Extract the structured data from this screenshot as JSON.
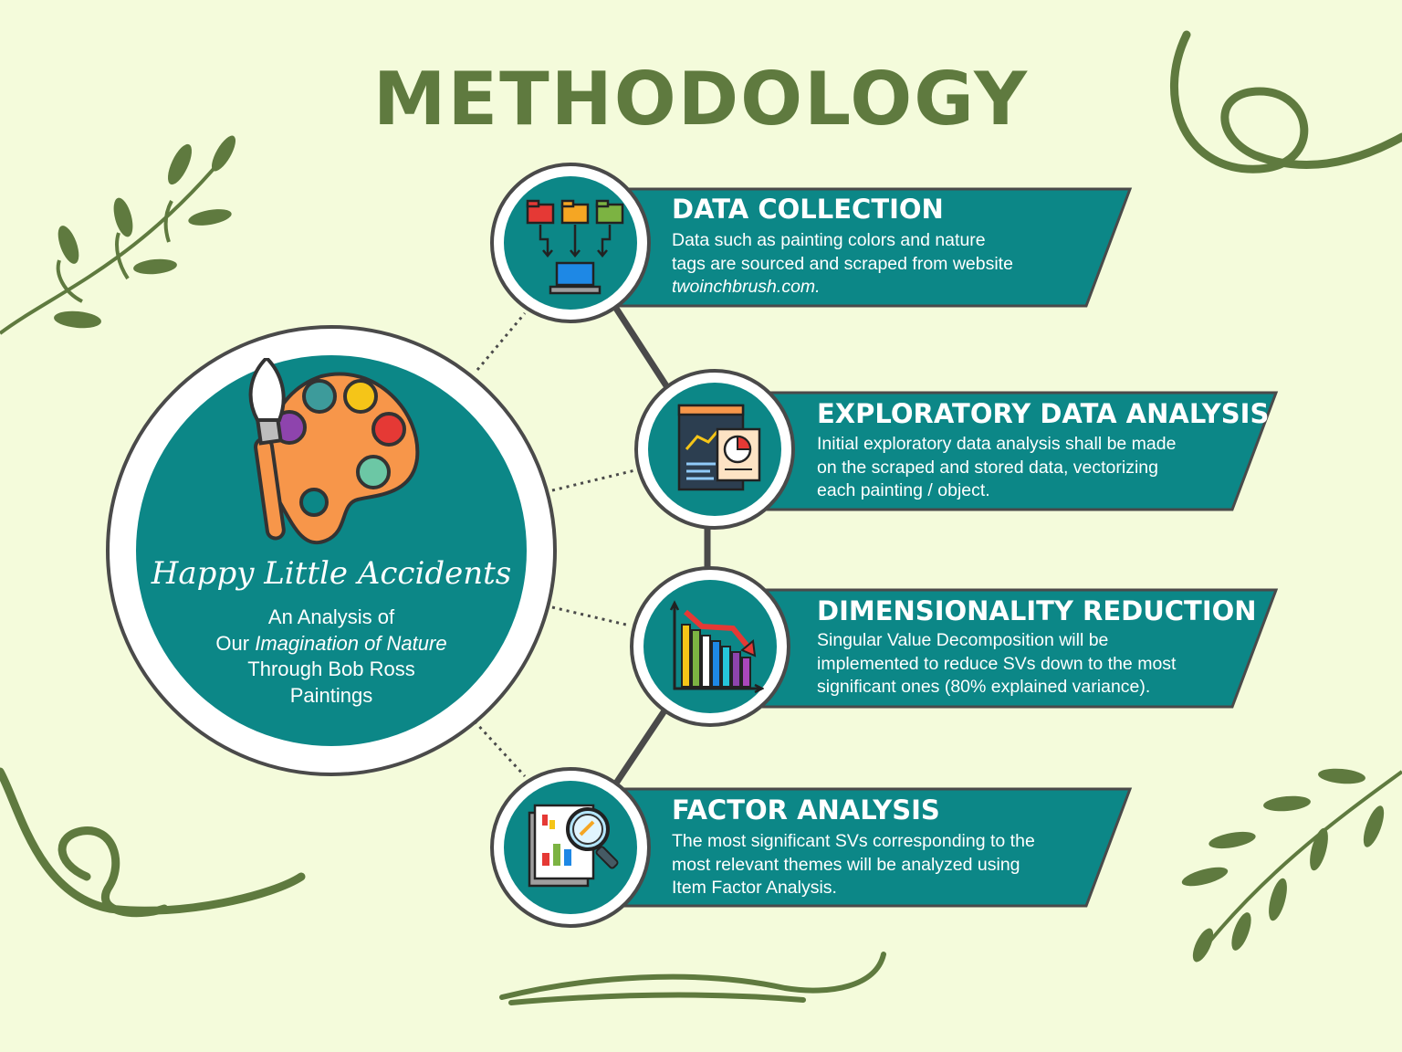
{
  "title": "METHODOLOGY",
  "hub": {
    "script_title": "Happy Little Accidents",
    "subtitle_line1": "An Analysis of",
    "subtitle_line2_pre": "Our ",
    "subtitle_line2_em": "Imagination of Nature",
    "subtitle_line3": "Through Bob Ross",
    "subtitle_line4": "Paintings",
    "icon": "paint-palette-with-brush-icon"
  },
  "steps": [
    {
      "title": "DATA COLLECTION",
      "desc_line1": "Data such as painting colors and nature",
      "desc_line2": "tags are sourced and scraped from website",
      "desc_line3": "twoinchbrush.com.",
      "icon": "folders-to-computer-icon"
    },
    {
      "title": "EXPLORATORY DATA ANALYSIS",
      "desc_line1": "Initial exploratory data analysis shall be made",
      "desc_line2": "on the scraped and stored data, vectorizing",
      "desc_line3": "each painting / object.",
      "icon": "dashboard-report-icon"
    },
    {
      "title": "DIMENSIONALITY REDUCTION",
      "desc_line1": "Singular Value Decomposition will be",
      "desc_line2": "implemented to reduce SVs down to the most",
      "desc_line3": "significant ones (80% explained variance).",
      "icon": "declining-bar-chart-icon"
    },
    {
      "title": "FACTOR ANALYSIS",
      "desc_line1": "The most significant SVs corresponding to the",
      "desc_line2": "most relevant themes will be analyzed using",
      "desc_line3": "Item Factor Analysis.",
      "icon": "magnifier-report-icon"
    }
  ],
  "colors": {
    "background": "#f4fbdb",
    "teal": "#0c8787",
    "title_green": "#5f7a3f",
    "vine_green": "#5f7a3f",
    "ring_border": "#4a4a4a"
  }
}
